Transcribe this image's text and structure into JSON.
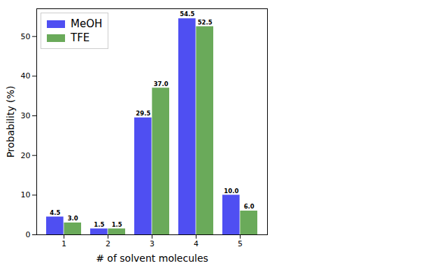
{
  "chart_data": {
    "type": "bar",
    "categories": [
      1,
      2,
      3,
      4,
      5
    ],
    "series": [
      {
        "name": "MeOH",
        "color": "#4f4ff2",
        "values": [
          4.5,
          1.5,
          29.5,
          54.5,
          10.0
        ],
        "value_labels": [
          "4.5",
          "1.5",
          "29.5",
          "54.5",
          "10.0"
        ]
      },
      {
        "name": "TFE",
        "color": "#6aaa5a",
        "values": [
          3.0,
          1.5,
          37.0,
          52.5,
          6.0
        ],
        "value_labels": [
          "3.0",
          "1.5",
          "37.0",
          "52.5",
          "6.0"
        ]
      }
    ],
    "x_label": "# of solvent molecules",
    "y_label": "Probability (%)",
    "ylim": [
      0,
      57
    ],
    "yticks": [
      0,
      10,
      20,
      30,
      40,
      50
    ],
    "legend": "upper left",
    "data_labels": true,
    "grid": false
  }
}
